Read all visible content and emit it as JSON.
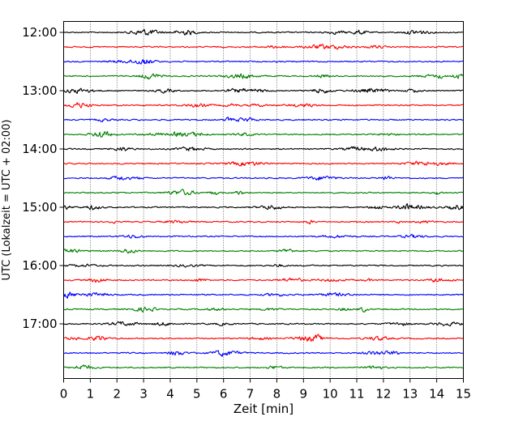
{
  "chart_data": {
    "type": "line",
    "chart_kind": "seismogram helicorder (drum plot)",
    "xlabel": "Zeit  [min]",
    "ylabel": "UTC (Lokalzeit = UTC + 02:00)",
    "xlim": [
      0,
      15
    ],
    "x_ticks": [
      "0",
      "1",
      "2",
      "3",
      "4",
      "5",
      "6",
      "7",
      "8",
      "9",
      "10",
      "11",
      "12",
      "13",
      "14",
      "15"
    ],
    "y_ticks": [
      {
        "label": "12:00",
        "trace_index": 0
      },
      {
        "label": "13:00",
        "trace_index": 4
      },
      {
        "label": "14:00",
        "trace_index": 8
      },
      {
        "label": "15:00",
        "trace_index": 12
      },
      {
        "label": "16:00",
        "trace_index": 16
      },
      {
        "label": "17:00",
        "trace_index": 20
      }
    ],
    "trace_interval_minutes": 15,
    "trace_count": 24,
    "trace_colors": [
      "#000000",
      "#ff0000",
      "#0000ff",
      "#008000"
    ],
    "vertical_grid": "dotted, every 1 min",
    "legend": "none"
  }
}
